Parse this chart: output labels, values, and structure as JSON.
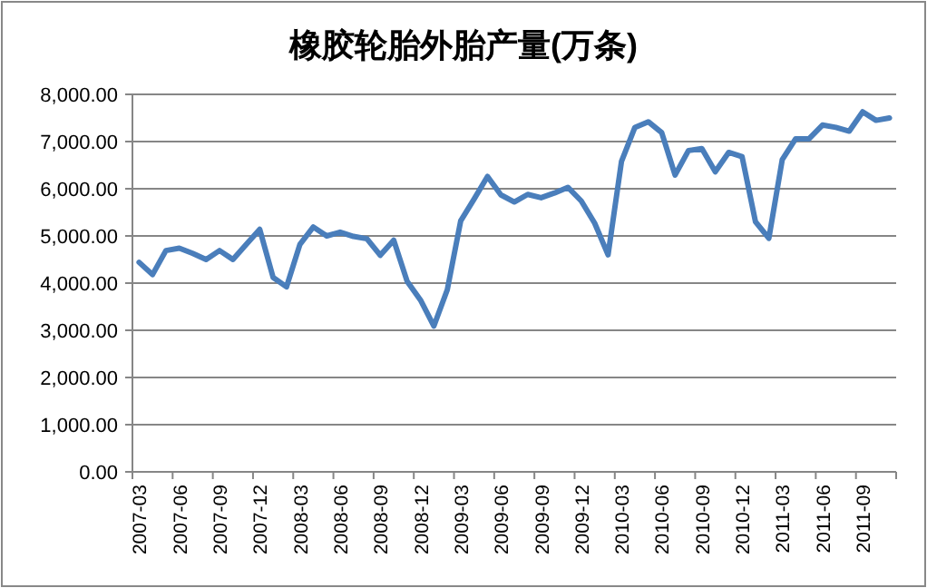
{
  "chart_data": {
    "type": "line",
    "title": "橡胶轮胎外胎产量(万条)",
    "categories": [
      "2007-03",
      null,
      null,
      "2007-06",
      null,
      null,
      "2007-09",
      null,
      null,
      "2007-12",
      null,
      null,
      "2008-03",
      null,
      null,
      "2008-06",
      null,
      null,
      "2008-09",
      null,
      null,
      "2008-12",
      null,
      null,
      "2009-03",
      null,
      null,
      "2009-06",
      null,
      null,
      "2009-09",
      null,
      null,
      "2009-12",
      null,
      null,
      "2010-03",
      null,
      null,
      "2010-06",
      null,
      null,
      "2010-09",
      null,
      null,
      "2010-12",
      null,
      null,
      "2011-03",
      null,
      null,
      "2011-06",
      null,
      null,
      "2011-09",
      null,
      null
    ],
    "series": [
      {
        "color": "#4a7ebb",
        "values": [
          4440,
          4180,
          4690,
          4740,
          4630,
          4500,
          4690,
          4500,
          4820,
          5140,
          4120,
          3920,
          4820,
          5190,
          5000,
          5080,
          4990,
          4940,
          4590,
          4910,
          4040,
          3640,
          3090,
          3860,
          5320,
          5780,
          6260,
          5870,
          5720,
          5880,
          5810,
          5910,
          6030,
          5740,
          5270,
          4600,
          6580,
          7300,
          7420,
          7190,
          6290,
          6810,
          6850,
          6360,
          6770,
          6680,
          5300,
          4950,
          6620,
          7060,
          7060,
          7350,
          7300,
          7220,
          7630,
          7450,
          7500
        ]
      }
    ],
    "ylim": [
      0,
      8000
    ],
    "yticks": [
      {
        "value": 0,
        "label": "0.00"
      },
      {
        "value": 1000,
        "label": "1,000.00"
      },
      {
        "value": 2000,
        "label": "2,000.00"
      },
      {
        "value": 3000,
        "label": "3,000.00"
      },
      {
        "value": 4000,
        "label": "4,000.00"
      },
      {
        "value": 5000,
        "label": "5,000.00"
      },
      {
        "value": 6000,
        "label": "6,000.00"
      },
      {
        "value": 7000,
        "label": "7,000.00"
      },
      {
        "value": 8000,
        "label": "8,000.00"
      }
    ],
    "grid": "y"
  }
}
